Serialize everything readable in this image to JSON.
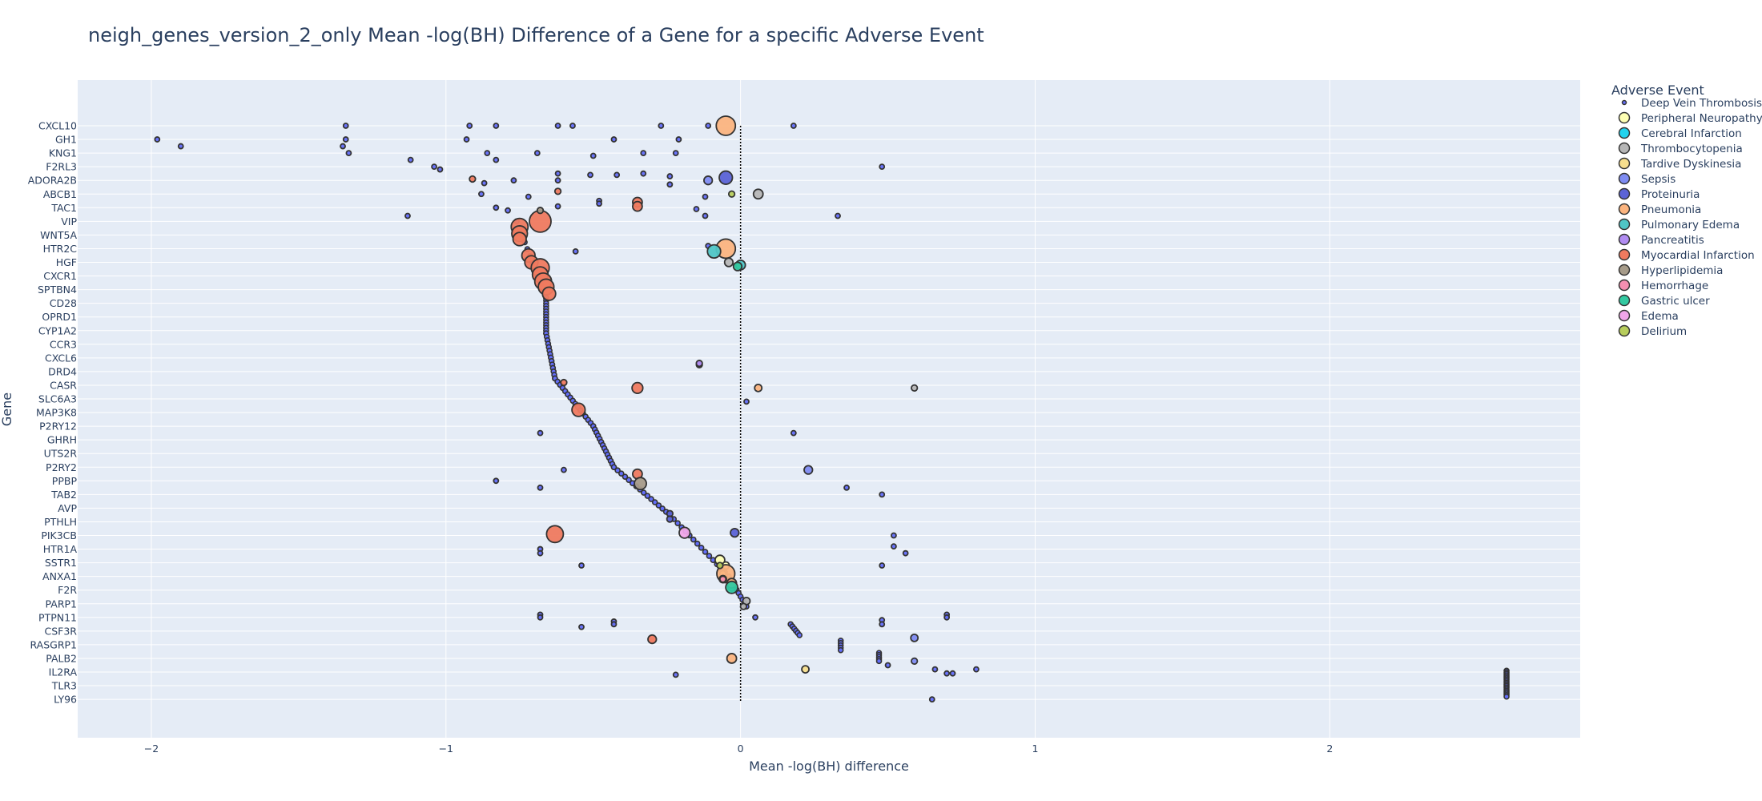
{
  "chart_data": {
    "type": "scatter",
    "title": "neigh_genes_version_2_only Mean -log(BH) Difference of a Gene for a specific Adverse Event",
    "xlabel": "Mean -log(BH) difference",
    "ylabel": "Gene",
    "xlim": [
      -2.25,
      2.85
    ],
    "x_ticks": [
      -2,
      -1,
      0,
      1,
      2
    ],
    "x_tick_labels": [
      "−2",
      "−1",
      "0",
      "1",
      "2"
    ],
    "grid": true,
    "zero_line": "dotted",
    "legend_placement": "right",
    "legend_title": "Adverse Event",
    "genes": [
      "CXCL10",
      "GH1",
      "KNG1",
      "F2RL3",
      "ADORA2B",
      "ABCB1",
      "TAC1",
      "VIP",
      "WNT5A",
      "HTR2C",
      "HGF",
      "CXCR1",
      "SPTBN4",
      "CD28",
      "OPRD1",
      "CYP1A2",
      "CCR3",
      "CXCL6",
      "DRD4",
      "CASR",
      "SLC6A3",
      "MAP3K8",
      "P2RY12",
      "GHRH",
      "UTS2R",
      "P2RY2",
      "PPBP",
      "TAB2",
      "AVP",
      "PTHLH",
      "PIK3CB",
      "HTR1A",
      "SSTR1",
      "ANXA1",
      "F2R",
      "PARP1",
      "PTPN11",
      "CSF3R",
      "RASGRP1",
      "PALB2",
      "IL2RA",
      "TLR3",
      "LY96"
    ],
    "series": [
      {
        "name": "Deep Vein Thrombosis",
        "color": "#636efa",
        "points": [
          {
            "x": -1.34,
            "y": 0,
            "s": 4
          },
          {
            "x": -0.92,
            "y": 0,
            "s": 4
          },
          {
            "x": -0.83,
            "y": 0,
            "s": 4
          },
          {
            "x": -0.62,
            "y": 0,
            "s": 4
          },
          {
            "x": -0.57,
            "y": 0,
            "s": 4
          },
          {
            "x": -0.27,
            "y": 0,
            "s": 4
          },
          {
            "x": -0.11,
            "y": 0,
            "s": 4
          },
          {
            "x": 0.18,
            "y": 0,
            "s": 4
          },
          {
            "x": -1.98,
            "y": 1,
            "s": 4
          },
          {
            "x": -1.34,
            "y": 1,
            "s": 4
          },
          {
            "x": -0.93,
            "y": 1,
            "s": 4
          },
          {
            "x": -0.43,
            "y": 1,
            "s": 4
          },
          {
            "x": -0.21,
            "y": 1,
            "s": 4
          },
          {
            "x": -1.9,
            "y": 1.5,
            "s": 4
          },
          {
            "x": -1.35,
            "y": 1.5,
            "s": 4
          },
          {
            "x": -0.86,
            "y": 2,
            "s": 4
          },
          {
            "x": -0.69,
            "y": 2,
            "s": 4
          },
          {
            "x": -0.33,
            "y": 2,
            "s": 4
          },
          {
            "x": -0.22,
            "y": 2,
            "s": 4
          },
          {
            "x": -1.33,
            "y": 2,
            "s": 4
          },
          {
            "x": -1.12,
            "y": 2.5,
            "s": 4
          },
          {
            "x": -0.83,
            "y": 2.5,
            "s": 4
          },
          {
            "x": -0.5,
            "y": 2.2,
            "s": 4
          },
          {
            "x": 0.48,
            "y": 3,
            "s": 4
          },
          {
            "x": -1.04,
            "y": 3,
            "s": 4
          },
          {
            "x": -1.02,
            "y": 3.2,
            "s": 4
          },
          {
            "x": -0.62,
            "y": 3.5,
            "s": 4
          },
          {
            "x": -0.51,
            "y": 3.6,
            "s": 4
          },
          {
            "x": -0.42,
            "y": 3.6,
            "s": 4
          },
          {
            "x": -0.33,
            "y": 3.5,
            "s": 4
          },
          {
            "x": -0.24,
            "y": 3.7,
            "s": 4
          },
          {
            "x": -0.77,
            "y": 4,
            "s": 4
          },
          {
            "x": -0.87,
            "y": 4.2,
            "s": 4
          },
          {
            "x": -0.62,
            "y": 4,
            "s": 4
          },
          {
            "x": -0.24,
            "y": 4.3,
            "s": 4
          },
          {
            "x": -0.88,
            "y": 5,
            "s": 4
          },
          {
            "x": -0.72,
            "y": 5.2,
            "s": 4
          },
          {
            "x": -0.48,
            "y": 5.5,
            "s": 4
          },
          {
            "x": -0.48,
            "y": 5.7,
            "s": 4
          },
          {
            "x": -0.12,
            "y": 5.2,
            "s": 4
          },
          {
            "x": -0.83,
            "y": 6,
            "s": 4
          },
          {
            "x": -0.79,
            "y": 6.2,
            "s": 4
          },
          {
            "x": -0.62,
            "y": 5.9,
            "s": 4
          },
          {
            "x": -0.15,
            "y": 6.1,
            "s": 4
          },
          {
            "x": -0.12,
            "y": 6.6,
            "s": 4
          },
          {
            "x": -1.13,
            "y": 6.6,
            "s": 4
          },
          {
            "x": 0.33,
            "y": 6.6,
            "s": 4
          },
          {
            "x": -0.56,
            "y": 9.2,
            "s": 4
          },
          {
            "x": -0.11,
            "y": 8.8,
            "s": 4
          },
          {
            "x": -0.68,
            "y": 22.5,
            "s": 4
          },
          {
            "x": 0.18,
            "y": 22.5,
            "s": 4
          },
          {
            "x": -0.83,
            "y": 26,
            "s": 4
          },
          {
            "x": -0.68,
            "y": 26.5,
            "s": 4
          },
          {
            "x": -0.6,
            "y": 25.2,
            "s": 4
          },
          {
            "x": -0.68,
            "y": 31,
            "s": 4
          },
          {
            "x": -0.68,
            "y": 31.3,
            "s": 4
          },
          {
            "x": -0.54,
            "y": 32.2,
            "s": 4
          },
          {
            "x": 0.48,
            "y": 32.2,
            "s": 4
          },
          {
            "x": -0.68,
            "y": 35.8,
            "s": 4
          },
          {
            "x": -0.68,
            "y": 36,
            "s": 4
          },
          {
            "x": -0.43,
            "y": 36.3,
            "s": 4
          },
          {
            "x": -0.43,
            "y": 36.5,
            "s": 4
          },
          {
            "x": -0.54,
            "y": 36.7,
            "s": 4
          },
          {
            "x": 0.05,
            "y": 36,
            "s": 4
          },
          {
            "x": 0.48,
            "y": 36.2,
            "s": 4
          },
          {
            "x": 0.48,
            "y": 36.5,
            "s": 4
          },
          {
            "x": 0.7,
            "y": 35.8,
            "s": 4
          },
          {
            "x": 0.7,
            "y": 36,
            "s": 4
          },
          {
            "x": -0.22,
            "y": 40.2,
            "s": 4
          },
          {
            "x": 0.66,
            "y": 39.8,
            "s": 4
          },
          {
            "x": 0.7,
            "y": 40.1,
            "s": 4
          },
          {
            "x": 0.72,
            "y": 40.1,
            "s": 4
          },
          {
            "x": 0.8,
            "y": 39.8,
            "s": 4
          },
          {
            "x": 0.65,
            "y": 42,
            "s": 4
          },
          {
            "x": 0.52,
            "y": 30,
            "s": 4
          },
          {
            "x": 0.52,
            "y": 30.8,
            "s": 4
          },
          {
            "x": 0.56,
            "y": 31.3,
            "s": 4
          },
          {
            "x": 0.5,
            "y": 39.5,
            "s": 4
          },
          {
            "x": 0.02,
            "y": 20.2,
            "s": 4
          },
          {
            "x": 0.48,
            "y": 27,
            "s": 4
          },
          {
            "x": 0.36,
            "y": 26.5,
            "s": 4
          }
        ]
      },
      {
        "name": "Peripheral Neuropathy",
        "color": "#feffb3",
        "points": [
          {
            "x": -0.07,
            "y": 31.8,
            "s": 8
          },
          {
            "x": -0.05,
            "y": 32.2,
            "s": 6
          }
        ]
      },
      {
        "name": "Cerebral Infarction",
        "color": "#22d3ee",
        "points": [
          {
            "x": -0.03,
            "y": 33.8,
            "s": 6
          }
        ]
      },
      {
        "name": "Thrombocytopenia",
        "color": "#b6b6b6",
        "points": [
          {
            "x": 0.06,
            "y": 5,
            "s": 8
          },
          {
            "x": -0.04,
            "y": 10,
            "s": 7
          },
          {
            "x": 0.59,
            "y": 19.2,
            "s": 5
          },
          {
            "x": 0.02,
            "y": 34.8,
            "s": 6
          },
          {
            "x": 0.01,
            "y": 35.2,
            "s": 5
          }
        ]
      },
      {
        "name": "Tardive Dyskinesia",
        "color": "#f7df8e",
        "points": [
          {
            "x": 0.22,
            "y": 39.8,
            "s": 6
          },
          {
            "x": -0.06,
            "y": 32.8,
            "s": 5
          }
        ]
      },
      {
        "name": "Sepsis",
        "color": "#7f8cf2",
        "points": [
          {
            "x": -0.11,
            "y": 4,
            "s": 7
          },
          {
            "x": 0.23,
            "y": 25.2,
            "s": 7
          },
          {
            "x": 0.59,
            "y": 37.5,
            "s": 6
          },
          {
            "x": 0.59,
            "y": 39.2,
            "s": 5
          },
          {
            "x": -0.14,
            "y": 17.5,
            "s": 5
          }
        ]
      },
      {
        "name": "Proteinuria",
        "color": "#5b63d6",
        "points": [
          {
            "x": -0.05,
            "y": 3.8,
            "s": 11
          },
          {
            "x": -0.02,
            "y": 29.8,
            "s": 7
          },
          {
            "x": -0.24,
            "y": 28.4,
            "s": 5
          },
          {
            "x": -0.24,
            "y": 28.8,
            "s": 5
          }
        ]
      },
      {
        "name": "Pneumonia",
        "color": "#fbb47f",
        "points": [
          {
            "x": -0.05,
            "y": 0,
            "s": 16
          },
          {
            "x": -0.05,
            "y": 9,
            "s": 16
          },
          {
            "x": -0.05,
            "y": 32.8,
            "s": 15
          },
          {
            "x": -0.03,
            "y": 33.5,
            "s": 8
          },
          {
            "x": -0.03,
            "y": 39,
            "s": 8
          },
          {
            "x": 0.06,
            "y": 19.2,
            "s": 6
          },
          {
            "x": -0.06,
            "y": 33.2,
            "s": 6
          }
        ]
      },
      {
        "name": "Pulmonary Edema",
        "color": "#4fc6c6",
        "points": [
          {
            "x": -0.09,
            "y": 9.2,
            "s": 11
          },
          {
            "x": 0.0,
            "y": 10.2,
            "s": 8
          }
        ]
      },
      {
        "name": "Pancreatitis",
        "color": "#b18cf2",
        "points": [
          {
            "x": -0.14,
            "y": 17.4,
            "s": 5
          }
        ]
      },
      {
        "name": "Myocardial Infarction",
        "color": "#ef7a5f",
        "points": [
          {
            "x": -0.68,
            "y": 7,
            "s": 18
          },
          {
            "x": -0.75,
            "y": 7.4,
            "s": 14
          },
          {
            "x": -0.75,
            "y": 7.9,
            "s": 13
          },
          {
            "x": -0.75,
            "y": 8.3,
            "s": 11
          },
          {
            "x": -0.72,
            "y": 9.5,
            "s": 11
          },
          {
            "x": -0.71,
            "y": 10,
            "s": 11
          },
          {
            "x": -0.68,
            "y": 10.4,
            "s": 15
          },
          {
            "x": -0.68,
            "y": 10.9,
            "s": 13
          },
          {
            "x": -0.67,
            "y": 11.4,
            "s": 14
          },
          {
            "x": -0.66,
            "y": 11.8,
            "s": 13
          },
          {
            "x": -0.65,
            "y": 12.3,
            "s": 11
          },
          {
            "x": -0.35,
            "y": 5.6,
            "s": 8
          },
          {
            "x": -0.35,
            "y": 5.9,
            "s": 8
          },
          {
            "x": -0.35,
            "y": 19.2,
            "s": 9
          },
          {
            "x": -0.55,
            "y": 20.8,
            "s": 11
          },
          {
            "x": -0.35,
            "y": 25.5,
            "s": 8
          },
          {
            "x": -0.63,
            "y": 29.9,
            "s": 14
          },
          {
            "x": -0.3,
            "y": 37.6,
            "s": 7
          },
          {
            "x": -0.91,
            "y": 3.9,
            "s": 5
          },
          {
            "x": -0.6,
            "y": 18.8,
            "s": 5
          },
          {
            "x": -0.62,
            "y": 4.8,
            "s": 5
          }
        ]
      },
      {
        "name": "Hyperlipidemia",
        "color": "#a69b89",
        "points": [
          {
            "x": -0.34,
            "y": 26.2,
            "s": 10
          },
          {
            "x": -0.68,
            "y": 6.2,
            "s": 5
          }
        ]
      },
      {
        "name": "Hemorrhage",
        "color": "#f48fb1",
        "points": [
          {
            "x": -0.06,
            "y": 33.2,
            "s": 5
          }
        ]
      },
      {
        "name": "Gastric ulcer",
        "color": "#33c9a1",
        "points": [
          {
            "x": -0.03,
            "y": 33.8,
            "s": 10
          },
          {
            "x": -0.01,
            "y": 10.3,
            "s": 7
          }
        ]
      },
      {
        "name": "Edema",
        "color": "#f0a6e9",
        "points": [
          {
            "x": -0.19,
            "y": 29.8,
            "s": 9
          }
        ]
      },
      {
        "name": "Delirium",
        "color": "#b7cd5c",
        "points": [
          {
            "x": -0.03,
            "y": 5,
            "s": 5
          },
          {
            "x": -0.07,
            "y": 32.2,
            "s": 5
          }
        ]
      }
    ],
    "diagonal_trails": [
      {
        "from": [
          -0.76,
          7
        ],
        "to": [
          -0.66,
          12.6
        ],
        "n": 12
      },
      {
        "from": [
          -0.66,
          12.6
        ],
        "to": [
          -0.66,
          15.2
        ],
        "n": 14
      },
      {
        "from": [
          -0.66,
          15.2
        ],
        "to": [
          -0.63,
          18.5
        ],
        "n": 14
      },
      {
        "from": [
          -0.63,
          18.5
        ],
        "to": [
          -0.5,
          22
        ],
        "n": 16
      },
      {
        "from": [
          -0.5,
          22
        ],
        "to": [
          -0.43,
          25
        ],
        "n": 14
      },
      {
        "from": [
          -0.43,
          25
        ],
        "to": [
          -0.24,
          28.5
        ],
        "n": 16
      },
      {
        "from": [
          -0.24,
          28.5
        ],
        "to": [
          -0.04,
          33
        ],
        "n": 16
      },
      {
        "from": [
          -0.04,
          33
        ],
        "to": [
          0.02,
          35.2
        ],
        "n": 10
      },
      {
        "from": [
          0.17,
          36.5
        ],
        "to": [
          0.2,
          37.3
        ],
        "n": 6
      },
      {
        "from": [
          0.34,
          37.7
        ],
        "to": [
          0.34,
          38.4
        ],
        "n": 5
      },
      {
        "from": [
          0.47,
          38.6
        ],
        "to": [
          0.47,
          39.2
        ],
        "n": 5
      },
      {
        "from": [
          2.6,
          39.9
        ],
        "to": [
          2.6,
          41.8
        ],
        "n": 18
      }
    ]
  }
}
